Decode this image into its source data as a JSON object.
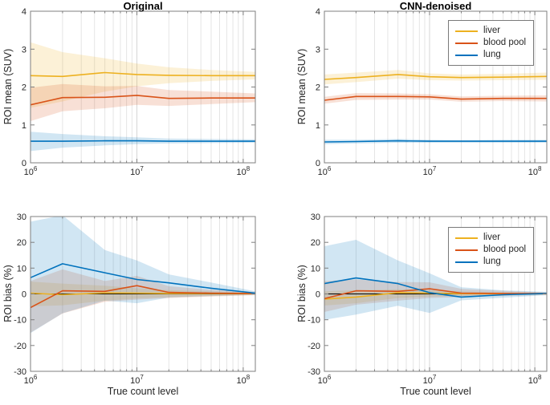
{
  "figure": {
    "background": "#ffffff"
  },
  "colors": {
    "liver": "#EDB120",
    "blood_pool": "#D95319",
    "lung": "#0072BD",
    "zero_line": "#000000",
    "grid_major": "#d5d5d5",
    "grid_minor": "#e5e5e5",
    "axis_box": "#7f7f7f",
    "text": "#262626",
    "band_opacity": 0.18
  },
  "x_axis": {
    "label": "True count level",
    "scale": "log",
    "min": 1000000,
    "max": 130000000,
    "ticks": [
      {
        "value": 1000000,
        "base": "10",
        "exp": "6"
      },
      {
        "value": 10000000,
        "base": "10",
        "exp": "7"
      },
      {
        "value": 100000000,
        "base": "10",
        "exp": "8"
      }
    ]
  },
  "legend": {
    "position": "top-right",
    "entries": [
      {
        "label": "liver",
        "color": "#EDB120"
      },
      {
        "label": "blood pool",
        "color": "#D95319"
      },
      {
        "label": "lung",
        "color": "#0072BD"
      }
    ]
  },
  "chart_data": [
    {
      "id": "original-mean",
      "type": "line",
      "title": "Original",
      "ylabel": "ROI mean (SUV)",
      "xlabel": "",
      "ylim": [
        0,
        4
      ],
      "yticks": [
        0,
        1,
        2,
        3,
        4
      ],
      "grid": "x-minor-vertical-only",
      "zero_line": false,
      "has_legend": false,
      "x": [
        1000000,
        2000000,
        5000000,
        10000000,
        20000000,
        50000000,
        130000000
      ],
      "series": [
        {
          "name": "liver",
          "color": "#EDB120",
          "values": [
            2.3,
            2.28,
            2.38,
            2.33,
            2.31,
            2.3,
            2.3
          ],
          "band_upper": [
            3.18,
            2.92,
            2.76,
            2.62,
            2.52,
            2.45,
            2.4
          ],
          "band_lower": [
            1.45,
            1.62,
            1.88,
            2.02,
            2.1,
            2.16,
            2.2
          ]
        },
        {
          "name": "blood_pool",
          "color": "#D95319",
          "values": [
            1.53,
            1.72,
            1.73,
            1.78,
            1.7,
            1.71,
            1.71
          ],
          "band_upper": [
            1.98,
            2.08,
            2.02,
            2.03,
            1.92,
            1.88,
            1.83
          ],
          "band_lower": [
            1.1,
            1.36,
            1.44,
            1.53,
            1.5,
            1.55,
            1.6
          ]
        },
        {
          "name": "lung",
          "color": "#0072BD",
          "values": [
            0.57,
            0.57,
            0.58,
            0.58,
            0.57,
            0.57,
            0.57
          ],
          "band_upper": [
            0.82,
            0.76,
            0.7,
            0.67,
            0.64,
            0.63,
            0.62
          ],
          "band_lower": [
            0.31,
            0.4,
            0.46,
            0.49,
            0.51,
            0.52,
            0.53
          ]
        }
      ]
    },
    {
      "id": "cnn-denoised-mean",
      "type": "line",
      "title": "CNN-denoised",
      "ylabel": "ROI mean (SUV)",
      "xlabel": "",
      "ylim": [
        0,
        4
      ],
      "yticks": [
        0,
        1,
        2,
        3,
        4
      ],
      "grid": "x-minor-vertical-only",
      "zero_line": false,
      "has_legend": true,
      "x": [
        1000000,
        2000000,
        5000000,
        10000000,
        20000000,
        50000000,
        130000000
      ],
      "series": [
        {
          "name": "liver",
          "color": "#EDB120",
          "values": [
            2.2,
            2.25,
            2.33,
            2.27,
            2.25,
            2.26,
            2.28
          ],
          "band_upper": [
            2.33,
            2.38,
            2.45,
            2.36,
            2.33,
            2.35,
            2.38
          ],
          "band_lower": [
            2.07,
            2.13,
            2.22,
            2.18,
            2.17,
            2.18,
            2.19
          ]
        },
        {
          "name": "blood_pool",
          "color": "#D95319",
          "values": [
            1.65,
            1.75,
            1.75,
            1.74,
            1.68,
            1.7,
            1.7
          ],
          "band_upper": [
            1.74,
            1.84,
            1.83,
            1.81,
            1.75,
            1.77,
            1.78
          ],
          "band_lower": [
            1.56,
            1.66,
            1.67,
            1.67,
            1.61,
            1.63,
            1.62
          ]
        },
        {
          "name": "lung",
          "color": "#0072BD",
          "values": [
            0.55,
            0.56,
            0.58,
            0.57,
            0.57,
            0.57,
            0.57
          ],
          "band_upper": [
            0.61,
            0.61,
            0.63,
            0.61,
            0.6,
            0.61,
            0.61
          ],
          "band_lower": [
            0.49,
            0.51,
            0.53,
            0.53,
            0.53,
            0.53,
            0.53
          ]
        }
      ]
    },
    {
      "id": "original-bias",
      "type": "line",
      "title": "",
      "ylabel": "ROI bias (%)",
      "xlabel": "True count level",
      "ylim": [
        -30,
        30
      ],
      "yticks": [
        -30,
        -20,
        -10,
        0,
        10,
        20,
        30
      ],
      "grid": "x-minor-vertical-only",
      "zero_line": true,
      "has_legend": false,
      "x": [
        1000000,
        2000000,
        5000000,
        10000000,
        20000000,
        50000000,
        130000000
      ],
      "series": [
        {
          "name": "liver",
          "color": "#EDB120",
          "values": [
            0.3,
            -0.3,
            0.4,
            0.3,
            0.2,
            0.2,
            0.1
          ],
          "band_upper": [
            4.8,
            4.0,
            3.2,
            2.2,
            1.5,
            1.0,
            0.5
          ],
          "band_lower": [
            -4.8,
            -4.4,
            -2.6,
            -1.8,
            -1.2,
            -0.8,
            -0.4
          ]
        },
        {
          "name": "blood_pool",
          "color": "#D95319",
          "values": [
            -5.3,
            1.2,
            1.0,
            3.2,
            0.6,
            0.3,
            0.2
          ],
          "band_upper": [
            5.0,
            9.5,
            5.0,
            7.0,
            3.0,
            1.6,
            0.8
          ],
          "band_lower": [
            -15.0,
            -7.6,
            -3.0,
            -2.2,
            -1.6,
            -1.0,
            -0.5
          ]
        },
        {
          "name": "lung",
          "color": "#0072BD",
          "values": [
            6.3,
            11.7,
            8.2,
            5.6,
            4.3,
            2.2,
            0.3
          ],
          "band_upper": [
            28.0,
            30.5,
            17.0,
            13.0,
            7.6,
            4.4,
            1.0
          ],
          "band_lower": [
            -15.2,
            -7.5,
            -2.6,
            -3.6,
            -1.4,
            -0.8,
            -0.3
          ]
        }
      ]
    },
    {
      "id": "cnn-denoised-bias",
      "type": "line",
      "title": "",
      "ylabel": "ROI bias (%)",
      "xlabel": "True count level",
      "ylim": [
        -30,
        30
      ],
      "yticks": [
        -30,
        -20,
        -10,
        0,
        10,
        20,
        30
      ],
      "grid": "x-minor-vertical-only",
      "zero_line": true,
      "has_legend": true,
      "x": [
        1000000,
        2000000,
        5000000,
        10000000,
        20000000,
        50000000,
        130000000
      ],
      "series": [
        {
          "name": "liver",
          "color": "#EDB120",
          "values": [
            -2.0,
            -1.2,
            0.5,
            0.3,
            0.1,
            0.1,
            0.1
          ],
          "band_upper": [
            1.0,
            1.5,
            1.8,
            1.5,
            1.0,
            0.6,
            0.4
          ],
          "band_lower": [
            -4.5,
            -3.6,
            -1.6,
            -1.0,
            -0.8,
            -0.5,
            -0.3
          ]
        },
        {
          "name": "blood_pool",
          "color": "#D95319",
          "values": [
            -1.8,
            1.2,
            1.0,
            2.0,
            0.3,
            0.2,
            0.2
          ],
          "band_upper": [
            5.0,
            5.6,
            4.6,
            4.5,
            2.0,
            1.2,
            0.6
          ],
          "band_lower": [
            -7.0,
            -4.2,
            -2.6,
            -1.6,
            -1.2,
            -0.8,
            -0.4
          ]
        },
        {
          "name": "lung",
          "color": "#0072BD",
          "values": [
            4.0,
            6.2,
            4.0,
            0.5,
            -1.2,
            -0.3,
            0.2
          ],
          "band_upper": [
            18.5,
            21.0,
            13.0,
            8.0,
            2.6,
            1.4,
            0.8
          ],
          "band_lower": [
            -10.0,
            -8.0,
            -4.6,
            -7.4,
            -2.5,
            -1.5,
            -0.5
          ]
        }
      ]
    }
  ]
}
